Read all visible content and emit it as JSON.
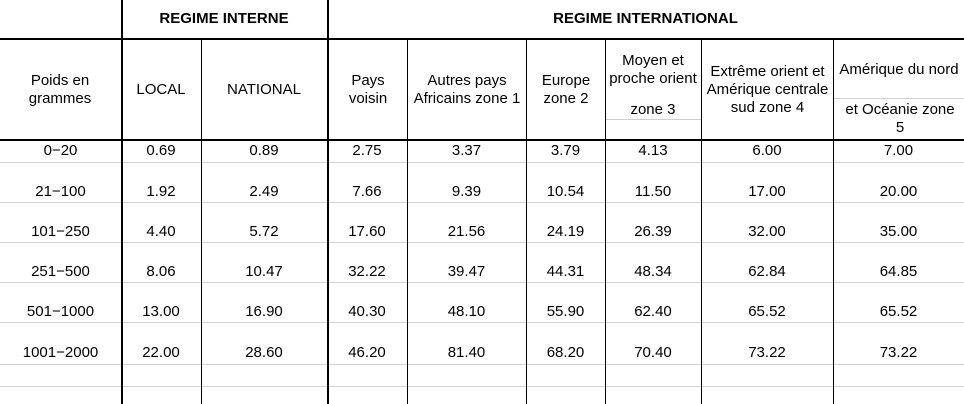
{
  "header": {
    "regime_interne": "REGIME INTERNE",
    "regime_international": "REGIME INTERNATIONAL",
    "poids": "Poids en grammes",
    "local": "LOCAL",
    "national": "NATIONAL",
    "pays_voisin": "Pays voisin",
    "autres_pays": "Autres pays Africains zone 1",
    "europe": "Europe zone 2",
    "moyen_orient_a": "Moyen et proche orient",
    "moyen_orient_b": "zone 3",
    "extreme_orient": "Extrême orient et Amérique centrale sud zone 4",
    "amerique_a": "Amérique du nord",
    "amerique_b": "et Océanie zone 5"
  },
  "rows": [
    {
      "poids": "0−20",
      "local": "0.69",
      "national": "0.89",
      "voisin": "2.75",
      "afrique": "3.37",
      "europe": "3.79",
      "moyen": "4.13",
      "extreme": "6.00",
      "amerique": "7.00"
    },
    {
      "poids": "21−100",
      "local": "1.92",
      "national": "2.49",
      "voisin": "7.66",
      "afrique": "9.39",
      "europe": "10.54",
      "moyen": "11.50",
      "extreme": "17.00",
      "amerique": "20.00"
    },
    {
      "poids": "101−250",
      "local": "4.40",
      "national": "5.72",
      "voisin": "17.60",
      "afrique": "21.56",
      "europe": "24.19",
      "moyen": "26.39",
      "extreme": "32.00",
      "amerique": "35.00"
    },
    {
      "poids": "251−500",
      "local": "8.06",
      "national": "10.47",
      "voisin": "32.22",
      "afrique": "39.47",
      "europe": "44.31",
      "moyen": "48.34",
      "extreme": "62.84",
      "amerique": "64.85"
    },
    {
      "poids": "501−1000",
      "local": "13.00",
      "national": "16.90",
      "voisin": "40.30",
      "afrique": "48.10",
      "europe": "55.90",
      "moyen": "62.40",
      "extreme": "65.52",
      "amerique": "65.52"
    },
    {
      "poids": "1001−2000",
      "local": "22.00",
      "national": "28.60",
      "voisin": "46.20",
      "afrique": "81.40",
      "europe": "68.20",
      "moyen": "70.40",
      "extreme": "73.22",
      "amerique": "73.22"
    }
  ]
}
